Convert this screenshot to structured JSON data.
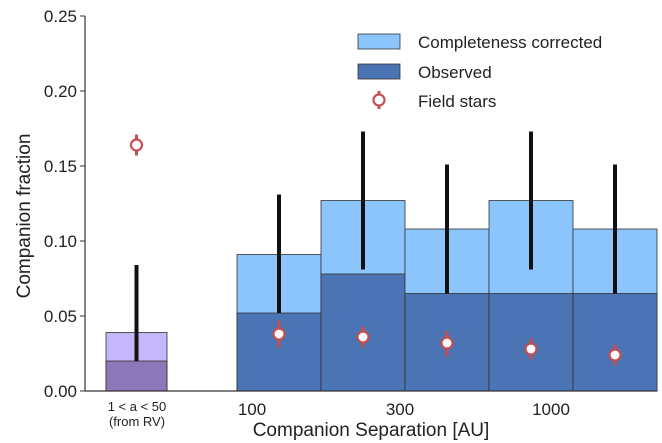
{
  "chart_data": {
    "type": "bar",
    "title": "",
    "xlabel": "Companion Separation [AU]",
    "ylabel": "Companion fraction",
    "ylim": [
      0,
      0.25
    ],
    "yticks": [
      0.0,
      0.05,
      0.1,
      0.15,
      0.2,
      0.25
    ],
    "ytick_labels": [
      "0.00",
      "0.05",
      "0.10",
      "0.15",
      "0.20",
      "0.25"
    ],
    "x_tick_labels": [
      {
        "label": "100",
        "position": "left edge of second bin group"
      },
      {
        "label": "300",
        "position": "mid-range"
      },
      {
        "label": "1000",
        "position": "right"
      }
    ],
    "rv_label_line1": "1 < a < 50",
    "rv_label_line2": "(from RV)",
    "legend": {
      "placement": "top-right",
      "entries": [
        {
          "label": "Completeness corrected",
          "color": "#8CC4FC"
        },
        {
          "label": "Observed",
          "color": "#4A74B4"
        },
        {
          "label": "Field stars",
          "color": "#C44E52"
        }
      ]
    },
    "rv_bin": {
      "completeness_corrected": 0.039,
      "observed": 0.02,
      "err_low": 0.02,
      "err_high": 0.084,
      "field_star": 0.164,
      "field_err_low": 0.157,
      "field_err_high": 0.171,
      "corrected_color": "#C6B6FC",
      "observed_color": "#8A78B8"
    },
    "bins": [
      {
        "completeness_corrected": 0.091,
        "observed": 0.052,
        "err_low": 0.052,
        "err_high": 0.131,
        "field_star": 0.038,
        "field_err_low": 0.029,
        "field_err_high": 0.047
      },
      {
        "completeness_corrected": 0.127,
        "observed": 0.078,
        "err_low": 0.081,
        "err_high": 0.173,
        "field_star": 0.036,
        "field_err_low": 0.029,
        "field_err_high": 0.043
      },
      {
        "completeness_corrected": 0.108,
        "observed": 0.065,
        "err_low": 0.065,
        "err_high": 0.151,
        "field_star": 0.032,
        "field_err_low": 0.023,
        "field_err_high": 0.04
      },
      {
        "completeness_corrected": 0.127,
        "observed": 0.065,
        "err_low": 0.081,
        "err_high": 0.173,
        "field_star": 0.028,
        "field_err_low": 0.021,
        "field_err_high": 0.035
      },
      {
        "completeness_corrected": 0.108,
        "observed": 0.065,
        "err_low": 0.065,
        "err_high": 0.151,
        "field_star": 0.024,
        "field_err_low": 0.017,
        "field_err_high": 0.031
      }
    ],
    "colors": {
      "corrected": "#8CC4FC",
      "observed": "#4A74B4",
      "errorbar": "#111111",
      "field": "#C44E52"
    }
  }
}
